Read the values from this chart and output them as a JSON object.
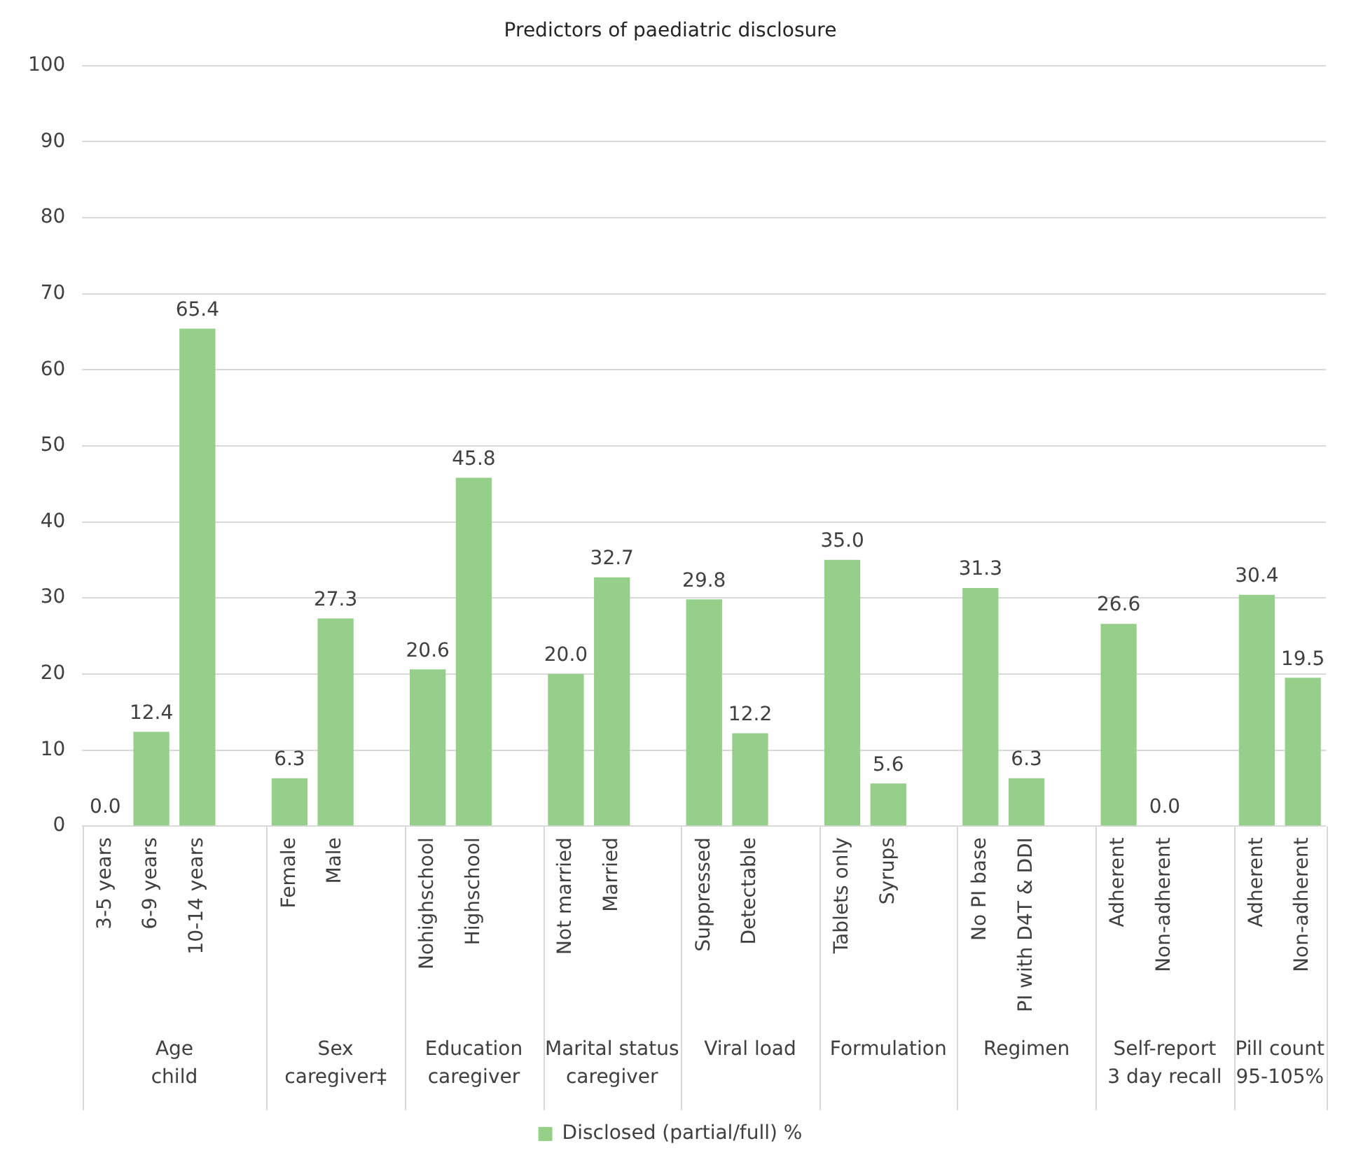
{
  "chart_data": {
    "type": "bar",
    "title": "Predictors of paediatric disclosure",
    "categories": [
      "3-5 years",
      "6-9 years",
      "10-14 years",
      null,
      "Female",
      "Male",
      null,
      "Nohighschool",
      "Highschool",
      null,
      "Not married",
      "Married",
      null,
      "Suppressed",
      "Detectable",
      null,
      "Tablets only",
      "Syrups",
      null,
      "No PI base",
      "PI with D4T & DDI",
      null,
      "Adherent",
      "Non-adherent",
      null,
      "Adherent",
      "Non-adherent"
    ],
    "series": [
      {
        "name": "Disclosed (partial/full) %",
        "color": "#95cf8a",
        "values": [
          0.0,
          12.4,
          65.4,
          null,
          6.3,
          27.3,
          null,
          20.6,
          45.8,
          null,
          20.0,
          32.7,
          null,
          29.8,
          12.2,
          null,
          35.0,
          5.6,
          null,
          31.3,
          6.3,
          null,
          26.6,
          0.0,
          null,
          30.4,
          19.5
        ],
        "value_labels": [
          "0.0",
          "12.4",
          "65.4",
          null,
          "6.3",
          "27.3",
          null,
          "20.6",
          "45.8",
          null,
          "20.0",
          "32.7",
          null,
          "29.8",
          "12.2",
          null,
          "35.0",
          "5.6",
          null,
          "31.3",
          "6.3",
          null,
          "26.6",
          "0.0",
          null,
          "30.4",
          "19.5"
        ]
      }
    ],
    "annotations": [
      "Age\nchild",
      "Sex\ncaregiver‡",
      "Education\ncaregiver",
      "Marital status\ncaregiver",
      "Viral load",
      "Formulation",
      "Regimen",
      "Self-report\n3 day recall",
      "Pill count\n95-105%"
    ],
    "ylim": [
      0,
      100
    ],
    "yticks": [
      0,
      10,
      20,
      30,
      40,
      50,
      60,
      70,
      80,
      90,
      100
    ],
    "grid": "y",
    "legend": "bottom"
  }
}
